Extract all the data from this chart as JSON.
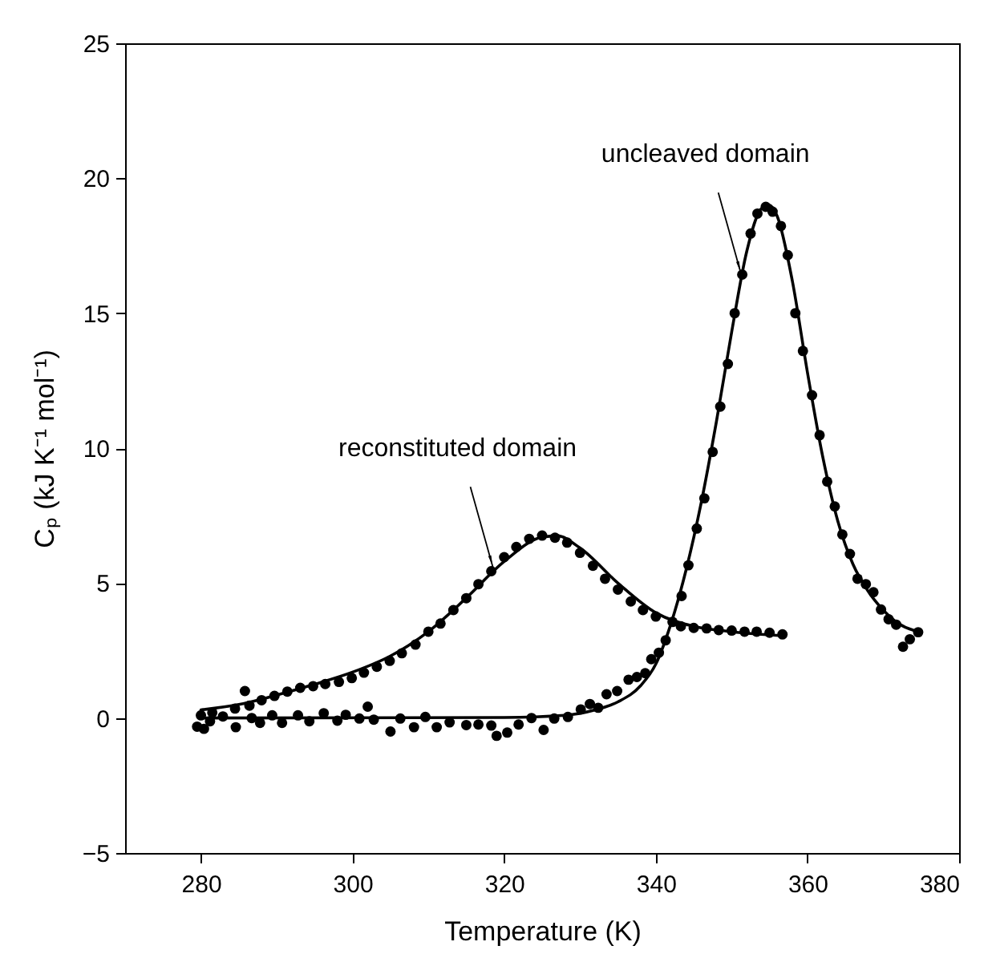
{
  "chart_data": {
    "type": "scatter",
    "xlabel": "Temperature (K)",
    "ylabel": "Cₚ (kJ K⁻¹ mol⁻¹)",
    "xlim": [
      270,
      380
    ],
    "xticks": [
      280,
      300,
      320,
      340,
      360,
      380
    ],
    "ylim": [
      -5,
      25
    ],
    "yticks": [
      -5,
      0,
      5,
      10,
      15,
      20,
      25
    ],
    "grid": false,
    "annotations": [
      {
        "text": "uncleaved domain",
        "x": 351.2,
        "y": 16.5
      },
      {
        "text": "reconstituted domain",
        "x": 318.5,
        "y": 5.6
      }
    ],
    "series": [
      {
        "color": "#000000",
        "marker": "circle",
        "x": [
          280,
          281.5,
          283,
          284.5,
          285.8,
          286.4,
          288,
          289.7,
          291.4,
          293.1,
          294.8,
          296.4,
          298.2,
          299.9,
          301.5,
          303.2,
          304.9,
          306.5,
          308.3,
          310,
          311.6,
          313.3,
          315,
          316.6,
          318.3,
          320,
          321.6,
          323.3,
          325,
          326.7,
          328.3,
          330,
          331.7,
          333.3,
          335,
          336.7,
          338.3,
          340,
          341.7,
          343.3,
          345,
          346.7,
          348.3,
          350,
          351.7,
          353.3,
          355,
          356.7
        ],
        "values": [
          0.1,
          0.2,
          null,
          0.35,
          1.0,
          0.46,
          0.66,
          0.82,
          0.98,
          1.12,
          1.18,
          1.26,
          1.34,
          1.48,
          1.68,
          1.9,
          2.12,
          2.4,
          2.72,
          3.2,
          3.5,
          4.0,
          4.44,
          4.96,
          5.44,
          5.96,
          6.34,
          6.64,
          6.76,
          6.68,
          6.5,
          6.12,
          5.64,
          5.16,
          4.76,
          4.32,
          4.0,
          3.76,
          null,
          3.4,
          3.34,
          3.32,
          3.26,
          3.24,
          3.2,
          3.2,
          3.16,
          3.1
        ]
      },
      {
        "type": "line",
        "color": "#000000",
        "x": [
          280,
          285,
          290,
          295,
          300,
          305,
          310,
          315,
          320,
          325,
          327,
          330,
          335,
          340,
          345,
          350,
          357
        ],
        "values": [
          0.3,
          0.5,
          0.85,
          1.25,
          1.7,
          2.3,
          3.2,
          4.45,
          5.8,
          6.7,
          6.75,
          6.3,
          5.0,
          3.9,
          3.4,
          3.2,
          3.05
        ]
      },
      {
        "color": "#000000",
        "marker": "circle",
        "x": [
          279.5,
          280.4,
          281.2,
          282.9,
          284.6,
          286.7,
          287.8,
          289.4,
          290.7,
          292.8,
          294.3,
          296.2,
          298,
          299.1,
          300.9,
          302,
          302.8,
          305,
          306.3,
          308.1,
          309.6,
          311.1,
          312.8,
          315,
          316.6,
          318.3,
          319,
          320.4,
          321.9,
          323.6,
          325.2,
          326.6,
          328.4,
          330.1,
          331.3,
          332.4,
          333.5,
          334.9,
          336.4,
          337.5,
          338.6,
          339.4,
          340.4,
          341.3,
          342.2,
          343.4,
          344.3,
          345.4,
          346.4,
          347.5,
          348.5,
          349.5,
          350.4,
          351.4,
          352.5,
          353.4,
          354.5,
          355.4,
          356.5,
          357.4,
          358.4,
          359.4,
          360.6,
          361.6,
          362.6,
          363.6,
          364.6,
          365.6,
          366.6,
          367.7,
          368.7,
          369.7,
          370.7,
          371.7,
          372.6,
          373.5,
          374.6
        ],
        "values": [
          -0.32,
          -0.4,
          -0.12,
          0.06,
          -0.34,
          0,
          -0.18,
          0.1,
          -0.18,
          0.1,
          -0.12,
          0.18,
          -0.1,
          0.12,
          -0.02,
          0.42,
          -0.06,
          -0.5,
          -0.02,
          -0.34,
          0.04,
          -0.34,
          -0.16,
          -0.26,
          -0.24,
          -0.28,
          -0.66,
          -0.54,
          -0.24,
          0,
          -0.44,
          -0.02,
          0.04,
          0.32,
          0.52,
          0.38,
          0.88,
          1.0,
          1.42,
          1.52,
          1.66,
          2.18,
          2.42,
          2.88,
          3.56,
          4.52,
          5.66,
          7.02,
          8.14,
          9.86,
          11.54,
          13.12,
          15.0,
          16.43,
          17.95,
          18.69,
          18.94,
          18.76,
          18.23,
          17.15,
          15.0,
          13.6,
          11.96,
          10.48,
          8.76,
          7.84,
          6.8,
          6.08,
          5.16,
          4.96,
          4.66,
          4.02,
          3.66,
          3.46,
          2.64,
          2.92,
          3.18
        ]
      },
      {
        "type": "line",
        "color": "#000000",
        "x": [
          280,
          320,
          328,
          332,
          335,
          338,
          340,
          342,
          344,
          346,
          348,
          350,
          352,
          354,
          355,
          356,
          358,
          360,
          362,
          364,
          366,
          368,
          370,
          372,
          374,
          375
        ],
        "values": [
          0,
          0.02,
          0.1,
          0.3,
          0.6,
          1.2,
          2.0,
          3.5,
          5.5,
          8.0,
          11,
          14.3,
          17.3,
          18.9,
          19.0,
          18.6,
          16.2,
          12.8,
          9.7,
          7.3,
          5.7,
          4.7,
          4.0,
          3.5,
          3.25,
          3.2
        ]
      }
    ]
  }
}
